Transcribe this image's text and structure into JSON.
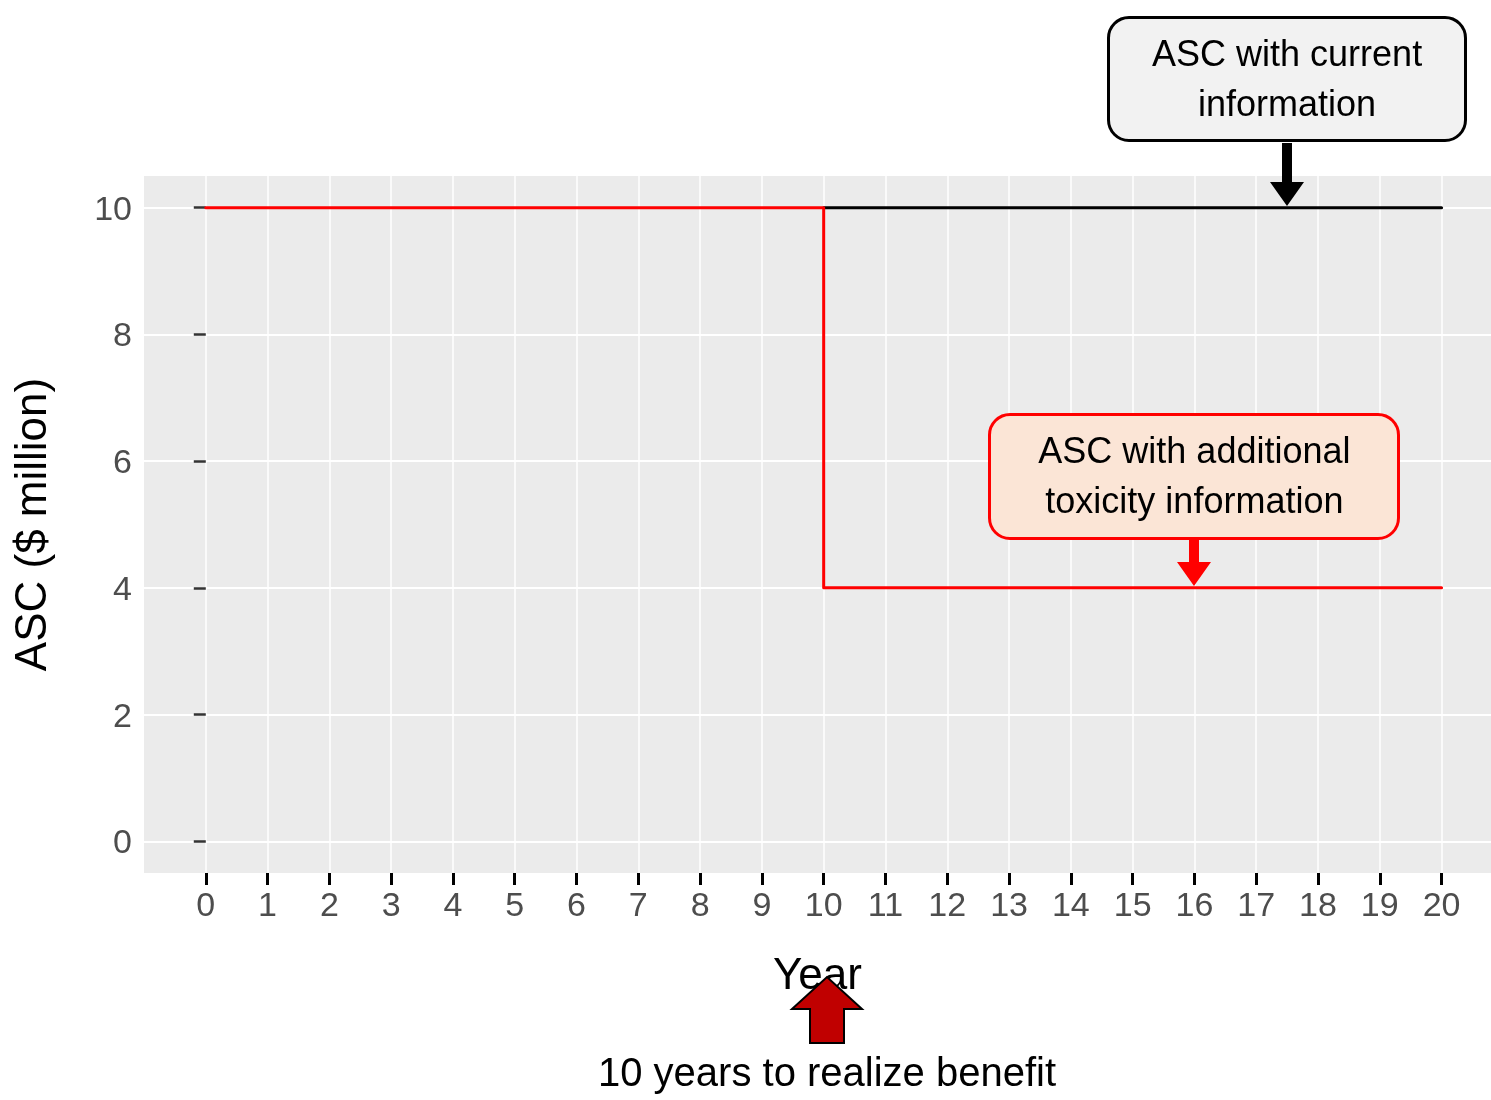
{
  "chart_data": {
    "type": "line",
    "xlabel": "Year",
    "ylabel": "ASC ($ million)",
    "xlim": [
      -1,
      20.8
    ],
    "ylim": [
      -0.5,
      10.5
    ],
    "xticks": [
      0,
      1,
      2,
      3,
      4,
      5,
      6,
      7,
      8,
      9,
      10,
      11,
      12,
      13,
      14,
      15,
      16,
      17,
      18,
      19,
      20
    ],
    "yticks": [
      0,
      2,
      4,
      6,
      8,
      10
    ],
    "series": [
      {
        "color": "#000000",
        "x": [
          10,
          20
        ],
        "values": [
          10,
          10
        ]
      },
      {
        "type": "step",
        "color": "#ff0000",
        "x": [
          0,
          10,
          20
        ],
        "values": [
          10,
          4,
          4
        ]
      }
    ],
    "annotations": [
      {
        "text": "ASC with current information",
        "x": 17.5,
        "y": 10
      },
      {
        "text": "ASC with additional toxicity information",
        "x": 16,
        "y": 4
      },
      "10 years to realize benefit"
    ],
    "grid": true,
    "marker": "none",
    "line_style": "solid"
  }
}
